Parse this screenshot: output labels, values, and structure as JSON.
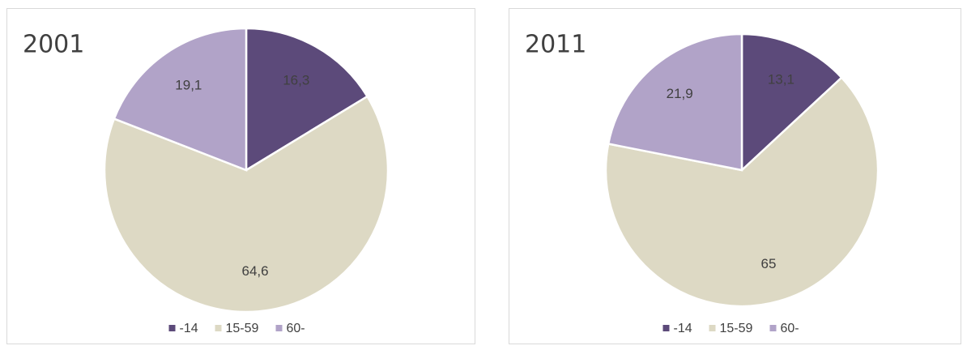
{
  "chart_data": [
    {
      "type": "pie",
      "title": "2001",
      "categories": [
        "-14",
        "15-59",
        "60-"
      ],
      "values": [
        16.3,
        64.6,
        19.1
      ],
      "value_labels": [
        "16,3",
        "64,6",
        "19,1"
      ],
      "colors": [
        "#5c4a7a",
        "#ddd9c4",
        "#b1a3c8"
      ]
    },
    {
      "type": "pie",
      "title": "2011",
      "categories": [
        "-14",
        "15-59",
        "60-"
      ],
      "values": [
        13.1,
        65,
        21.9
      ],
      "value_labels": [
        "13,1",
        "65",
        "21,9"
      ],
      "colors": [
        "#5c4a7a",
        "#ddd9c4",
        "#b1a3c8"
      ]
    }
  ]
}
